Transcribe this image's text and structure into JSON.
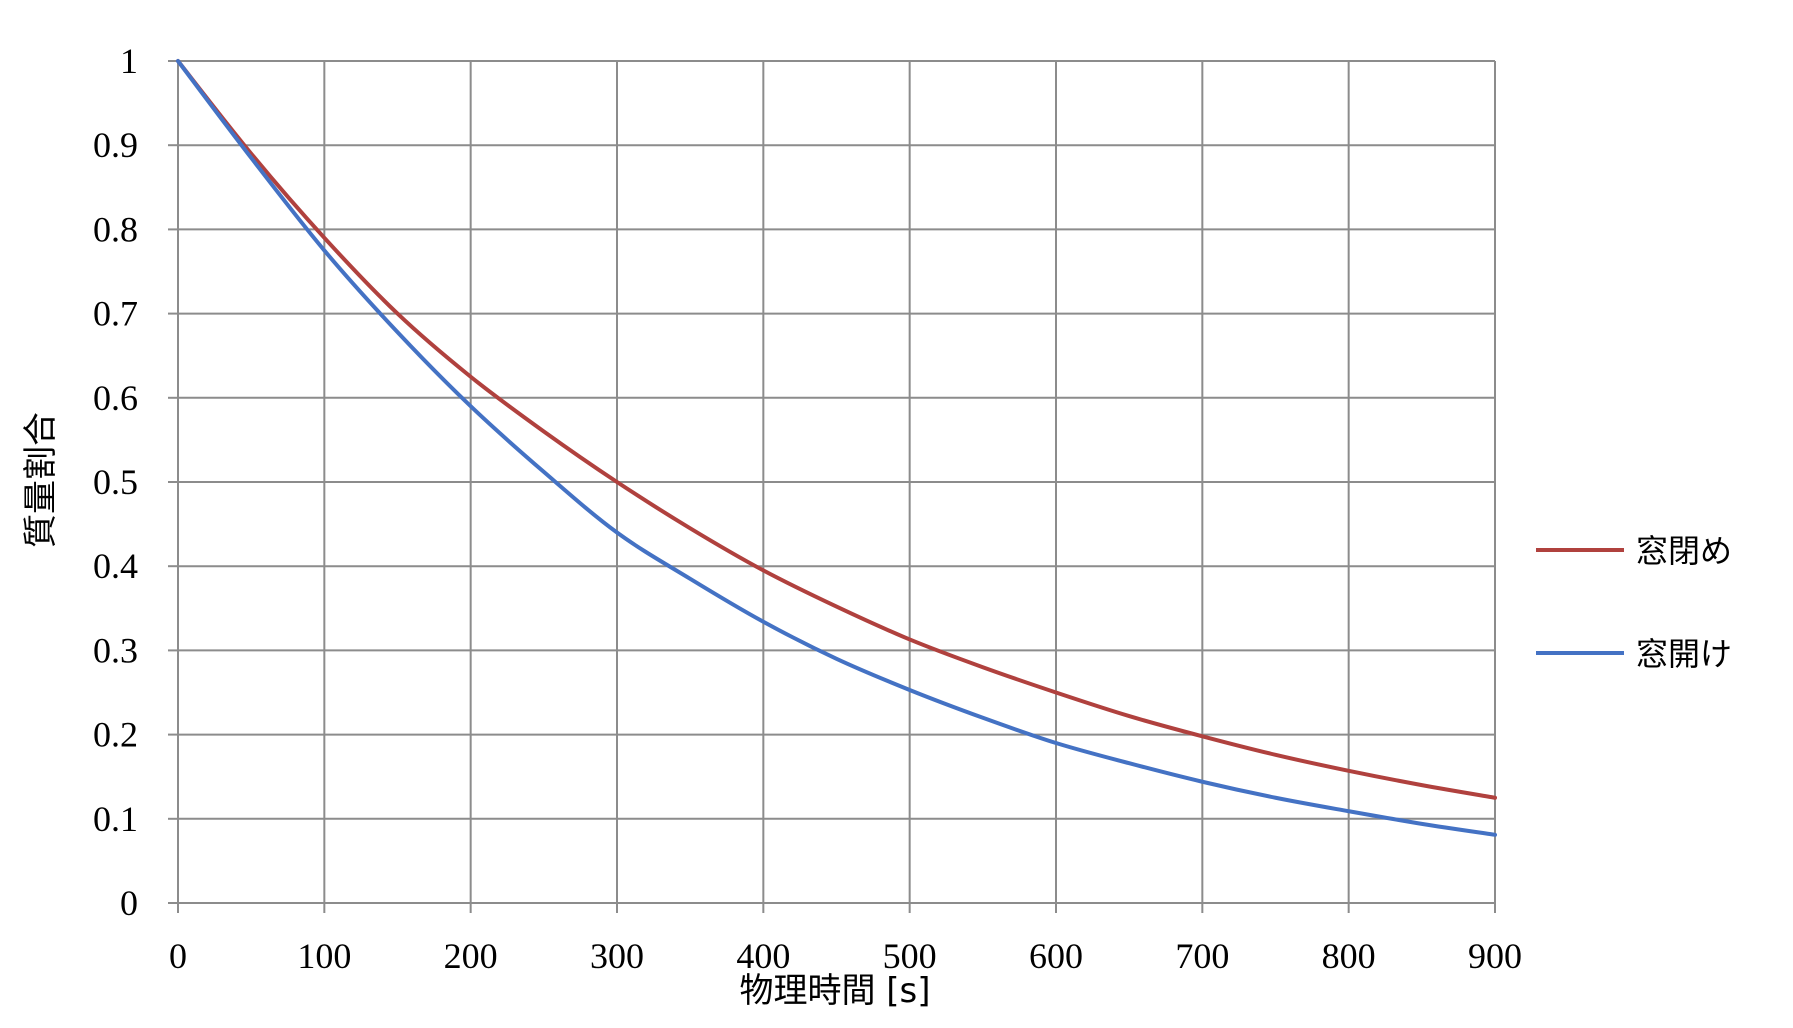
{
  "chart_data": {
    "type": "line",
    "title": "",
    "xlabel": "物理時間 [s]",
    "ylabel": "質量割合",
    "xlim": [
      0,
      900
    ],
    "ylim": [
      0,
      1
    ],
    "x_ticks": [
      "0",
      "100",
      "200",
      "300",
      "400",
      "500",
      "600",
      "700",
      "800",
      "900"
    ],
    "y_ticks": [
      "0",
      "0.1",
      "0.2",
      "0.3",
      "0.4",
      "0.5",
      "0.6",
      "0.7",
      "0.8",
      "0.9",
      "1"
    ],
    "grid": true,
    "legend_position": "right",
    "series": [
      {
        "name": "窓閉め",
        "color": "#b0413e",
        "x": [
          0,
          50,
          100,
          150,
          200,
          250,
          300,
          350,
          400,
          450,
          500,
          550,
          600,
          650,
          700,
          750,
          800,
          850,
          900
        ],
        "y": [
          1.0,
          0.89,
          0.79,
          0.7,
          0.625,
          0.56,
          0.5,
          0.445,
          0.395,
          0.352,
          0.313,
          0.28,
          0.25,
          0.222,
          0.198,
          0.176,
          0.157,
          0.14,
          0.125
        ]
      },
      {
        "name": "窓開け",
        "color": "#4472c4",
        "x": [
          0,
          50,
          100,
          150,
          200,
          250,
          300,
          350,
          400,
          450,
          500,
          550,
          600,
          650,
          700,
          750,
          800,
          850,
          900
        ],
        "y": [
          1.0,
          0.885,
          0.775,
          0.678,
          0.59,
          0.512,
          0.44,
          0.385,
          0.334,
          0.29,
          0.253,
          0.22,
          0.19,
          0.166,
          0.144,
          0.125,
          0.109,
          0.094,
          0.081
        ]
      }
    ]
  }
}
